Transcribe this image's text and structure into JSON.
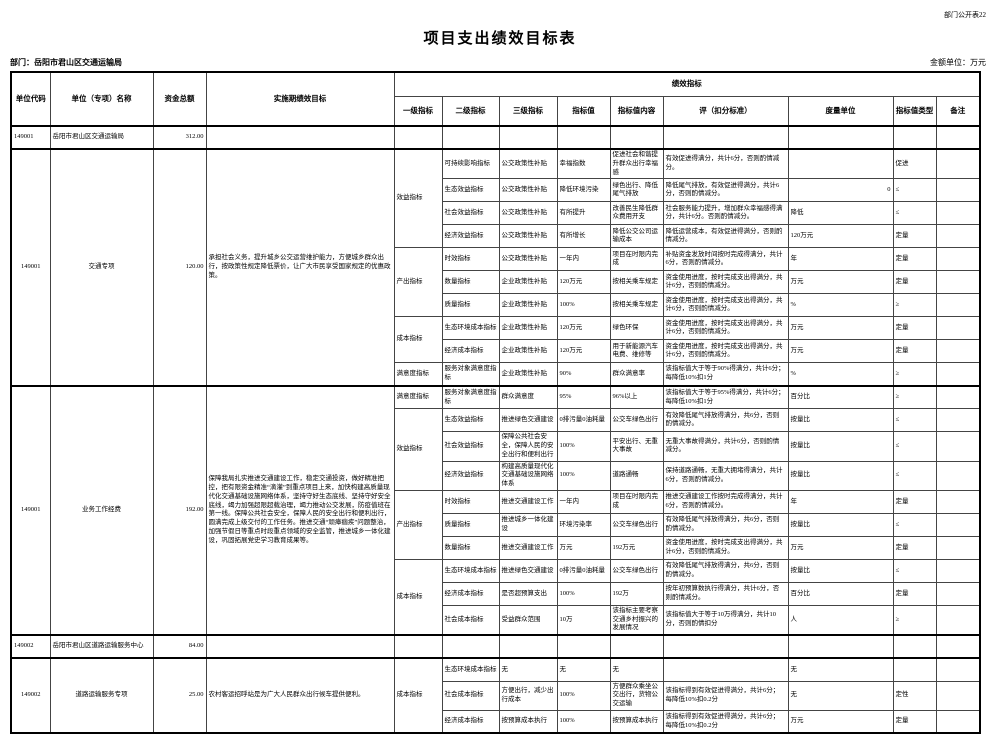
{
  "page": {
    "doc_number": "部门公开表22",
    "title": "项目支出绩效目标表",
    "department_label": "部门：岳阳市君山区交通运输局",
    "amount_unit_label": "金额单位：万元"
  },
  "table": {
    "widths": [
      39,
      103,
      53,
      188,
      48,
      57,
      58,
      53,
      53,
      125,
      105,
      43,
      44
    ],
    "rows": [
      {
        "h": true,
        "ht": 24,
        "cells": [
          {
            "t": "单位代码",
            "rs": 2
          },
          {
            "t": "单位（专项）名称",
            "rs": 2
          },
          {
            "t": "资金总额",
            "rs": 2
          },
          {
            "t": "实施期绩效目标",
            "rs": 2
          },
          {
            "t": "绩效指标",
            "cs": 9
          }
        ]
      },
      {
        "h": true,
        "ht": 30,
        "cells": [
          {
            "t": "一级指标"
          },
          {
            "t": "二级指标"
          },
          {
            "t": "三级指标"
          },
          {
            "t": "指标值"
          },
          {
            "t": "指标值内容"
          },
          {
            "t": "评（扣分标准）"
          },
          {
            "t": "度量单位"
          },
          {
            "t": "指标值类型"
          },
          {
            "t": "备注"
          }
        ]
      },
      {
        "s": true,
        "cells": [
          "149001",
          "岳阳市君山区交通运输局",
          {
            "t": "312.00",
            "a": "r"
          },
          "",
          "",
          "",
          "",
          "",
          "",
          "",
          "",
          "",
          ""
        ]
      },
      {
        "s": true,
        "cells": [
          {
            "t": "149001",
            "rs": 10,
            "a": "c"
          },
          {
            "t": "交通专项",
            "rs": 10,
            "a": "c"
          },
          {
            "t": "120.00",
            "rs": 10,
            "a": "r"
          },
          {
            "t": "承担社会义务，提升城乡公交运营维护能力，方便城乡群众出行，按政策性规定降低票价，让广大市民享受国家规定的优惠政策。",
            "rs": 10,
            "a": "g"
          },
          {
            "t": "效益指标",
            "rs": 4
          },
          "可持续影响指标",
          "公交政策性补贴",
          "幸福指数",
          "促进社会和谐提升群众出行幸福感",
          "有效促进得满分，共计6分，否则酌情减分。",
          "",
          "促进",
          ""
        ]
      },
      {
        "cells": [
          "生态效益指标",
          "公交政策性补贴",
          "降低环境污染",
          "绿色出行、降低尾气排放",
          "降低尾气排放，有效促进得满分，共计6分，否则酌情减分。",
          {
            "t": "0",
            "a": "r"
          },
          "≤",
          ""
        ]
      },
      {
        "cells": [
          "社会效益指标",
          "公交政策性补贴",
          "有所提升",
          "改善民生降低群众费用开支",
          "社会服务能力提升，增加群众幸福感得满分，共计6分。否则酌情减分。",
          "降低",
          "≤",
          ""
        ]
      },
      {
        "cells": [
          "经济效益指标",
          "公交政策性补贴",
          "有所增长",
          "降低公交公司运输成本",
          "降低运营成本，有效促进得满分，否则酌情减分。",
          "120万元",
          "定量",
          ""
        ]
      },
      {
        "cells": [
          {
            "t": "产出指标",
            "rs": 3
          },
          "时效指标",
          "公交政策性补贴",
          "一年内",
          "项目在时限内完成",
          "补贴资金发放时间按时完成得满分，共计6分，否则酌情减分。",
          "年",
          "定量",
          ""
        ]
      },
      {
        "cells": [
          "数量指标",
          "企业政策性补贴",
          "120万元",
          "按相关乘车规定",
          "资金使用进度，按时完成支出得满分，共计6分，否则酌情减分。",
          "万元",
          "定量",
          ""
        ]
      },
      {
        "cells": [
          "质量指标",
          "企业政策性补贴",
          "100%",
          "按相关乘车规定",
          "资金使用进度，按时完成支出得满分，共计6分，否则酌情减分。",
          "%",
          "≥",
          ""
        ]
      },
      {
        "cells": [
          {
            "t": "成本指标",
            "rs": 2
          },
          "生态环境成本指标",
          "企业政策性补贴",
          "120万元",
          "绿色环保",
          "资金使用进度，按时完成支出得满分，共计6分，否则酌情减分。",
          "万元",
          "定量",
          ""
        ]
      },
      {
        "cells": [
          "经济成本指标",
          "企业政策性补贴",
          "120万元",
          "用于新能源汽车电费、维修等",
          "资金使用进度，按时完成支出得满分，共计6分，否则酌情减分。",
          "万元",
          "定量",
          ""
        ]
      },
      {
        "cells": [
          {
            "t": "满意度指标",
            "rs": 1
          },
          "服务对象满意度指标",
          "企业政策性补贴",
          "90%",
          "群众满意率",
          "该指标值大于等于90%得满分，共计6分；每降低10%扣1分",
          "%",
          "≥",
          ""
        ]
      },
      {
        "s": true,
        "cells": [
          {
            "t": "149001",
            "rs": 10,
            "a": "c"
          },
          {
            "t": "业务工作经费",
            "rs": 10,
            "a": "c"
          },
          {
            "t": "192.00",
            "rs": 10,
            "a": "r"
          },
          {
            "t": "保障我局扎实推进交通建设工作，稳定交通投资，做好精准把控，把有限资金精准“滴灌”到重点项目上来，加快构建高质量现代化交通基础设施网络体系，坚持守好生态底线、坚持守好安全底线，竭力加强超限超载治理，竭力推动公交发展，防疫值班在第一线。保障公共社会安全，保障人民的安全出行和便利出行，圆满完成上级交付的工作任务。推进交通“顽瘴痼疾”问题整治，加强节假日等重点时段重点领域的安全监管，推进城乡一体化建设，巩固拓展党史学习教育成果等。",
            "rs": 10,
            "a": "g"
          },
          {
            "t": "满意度指标",
            "rs": 1
          },
          "服务对象满意度指标",
          "群众满意度",
          "95%",
          "96%以上",
          "该指标值大于等于95%得满分，共计6分；每降低10%扣1分",
          "百分比",
          "≥",
          ""
        ]
      },
      {
        "cells": [
          {
            "t": "效益指标",
            "rs": 3
          },
          "生态效益指标",
          "推进绿色交通建设",
          "0排污量0油耗量",
          "公交车绿色出行",
          "有效降低尾气排放得满分，共6分，否则酌情减分。",
          "按量比",
          "≤",
          ""
        ]
      },
      {
        "cells": [
          "社会效益指标",
          "保障公共社会安全，保障人民的安全出行和便利出行",
          "100%",
          "平安出行、无重大事故",
          "无重大事故得满分，共计6分，否则酌情减分。",
          "按量比",
          "≤",
          ""
        ]
      },
      {
        "cells": [
          "经济效益指标",
          "构建高质量现代化交通基础设施网络体系",
          "100%",
          "道路通畅",
          "保持道路通畅，无重大拥堵得满分，共计6分，否则酌情减分。",
          "按量比",
          "≤",
          ""
        ]
      },
      {
        "cells": [
          {
            "t": "产出指标",
            "rs": 3
          },
          "时效指标",
          "推进交通建设工作",
          "一年内",
          "项目在时限内完成",
          "推进交通建设工作按时完成得满分，共计6分，否则酌情减分。",
          "年",
          "定量",
          ""
        ]
      },
      {
        "cells": [
          "质量指标",
          "推进城乡一体化建设",
          "环境污染率",
          "公交车绿色出行",
          "有效降低尾气排放得满分，共6分，否则酌情减分。",
          "按量比",
          "≤",
          ""
        ]
      },
      {
        "cells": [
          "数量指标",
          "推进交通建设工作",
          "万元",
          "192万元",
          "资金使用进度，按时完成支出得满分，共计6分，否则酌情减分。",
          "万元",
          "定量",
          ""
        ]
      },
      {
        "cells": [
          {
            "t": "成本指标",
            "rs": 3
          },
          "生态环境成本指标",
          "推进绿色交通建设",
          "0排污量0油耗量",
          "公交车绿色出行",
          "有效降低尾气排放得满分，共6分，否则酌情减分。",
          "按量比",
          "≤",
          ""
        ]
      },
      {
        "cells": [
          "经济成本指标",
          "是否超预算支出",
          "100%",
          "192万",
          "按年初预算数执行得满分，共计6分，否则酌情减分。",
          "百分比",
          "定量",
          ""
        ]
      },
      {
        "cells": [
          "社会成本指标",
          "受益群众范围",
          "10万",
          "该指标主要考察交通乡村振兴的发展情况",
          "该指标值大于等于10万得满分，共计10分，否则酌情扣分",
          "人",
          "≥",
          ""
        ]
      },
      {
        "s": true,
        "cells": [
          "149002",
          "岳阳市君山区道路运输服务中心",
          {
            "t": "84.00",
            "a": "r"
          },
          "",
          "",
          "",
          "",
          "",
          "",
          "",
          "",
          "",
          ""
        ]
      },
      {
        "s": true,
        "cells": [
          {
            "t": "149002",
            "rs": 3,
            "a": "c"
          },
          {
            "t": "道路运输服务专项",
            "rs": 3,
            "a": "c"
          },
          {
            "t": "25.00",
            "rs": 3,
            "a": "r"
          },
          {
            "t": "农村客运招呼站是为广大人民群众出行候车提供便利。",
            "rs": 3,
            "a": "g"
          },
          {
            "t": "成本指标",
            "rs": 3
          },
          "生态环境成本指标",
          "无",
          "无",
          "无",
          "",
          "无",
          "",
          ""
        ]
      },
      {
        "cells": [
          "社会成本指标",
          "方便出行，减少出行成本",
          "100%",
          "方便群众乘坐公交出行，货物公交运输",
          "该指标得到有效促进得满分，共计6分；每降低10%扣0.2分",
          "无",
          "定性",
          ""
        ]
      },
      {
        "cells": [
          "经济成本指标",
          "按预算成本执行",
          "100%",
          "按预算成本执行",
          "该指标得到有效促进得满分，共计6分；每降低10%扣0.2分",
          "万元",
          "定量",
          ""
        ]
      }
    ]
  }
}
